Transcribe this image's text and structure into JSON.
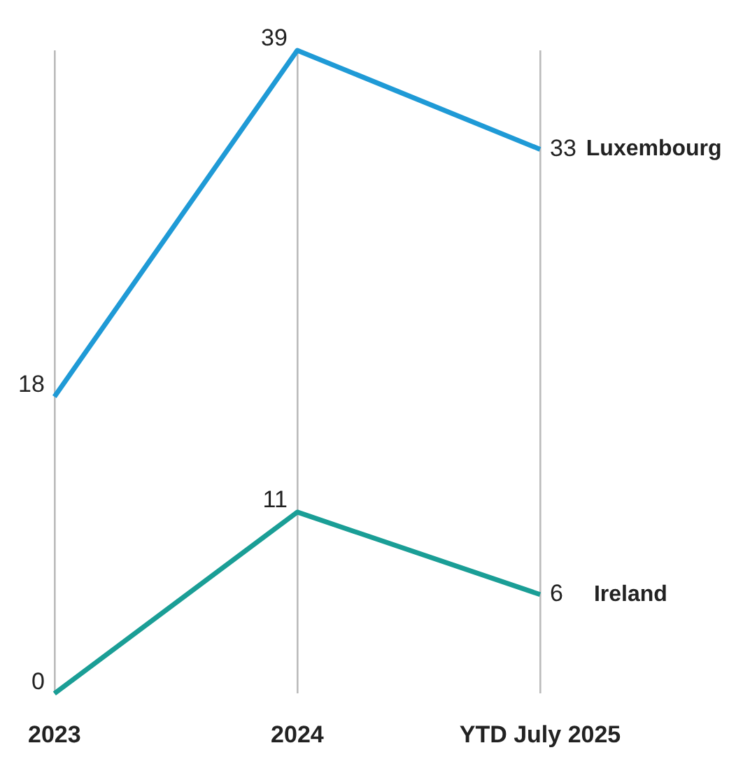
{
  "chart_data": {
    "type": "line",
    "categories": [
      "2023",
      "2024",
      "YTD July 2025"
    ],
    "series": [
      {
        "name": "Luxembourg",
        "color": "#1f9ad6",
        "values": [
          18,
          39,
          33
        ]
      },
      {
        "name": "Ireland",
        "color": "#1a9e96",
        "values": [
          0,
          11,
          6
        ]
      }
    ],
    "ylim": [
      0,
      39
    ],
    "tick_labels": "x",
    "grid": "x",
    "data_labels": true,
    "legend": false,
    "marker": "none",
    "line_style": "solid"
  }
}
